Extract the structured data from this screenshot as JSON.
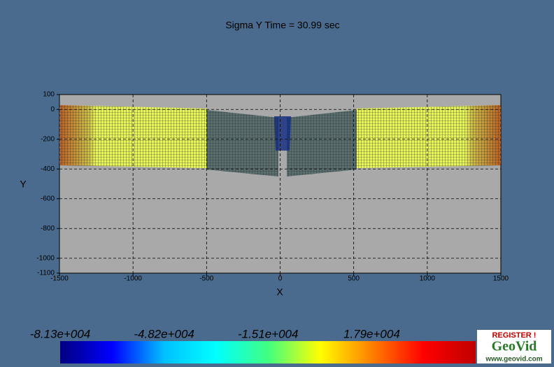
{
  "chart_data": {
    "type": "mesh",
    "title": "Sigma Y    Time =    30.99 sec",
    "xlabel": "X",
    "ylabel": "Y",
    "xlim": [
      -1500,
      1500
    ],
    "xticks": [
      -1500,
      -1000,
      -500,
      0,
      500,
      1000,
      1500
    ],
    "ylim": [
      -1100,
      100
    ],
    "yticks": [
      100,
      0,
      -200,
      -400,
      -600,
      -800,
      -1000,
      -1100
    ],
    "grid": true,
    "colorbar": {
      "clim": [
        -81300,
        51000
      ],
      "colors": [
        "#000080",
        "#0000ff",
        "#00c0ff",
        "#00ffff",
        "#40ff80",
        "#ffff00",
        "#ff8000",
        "#ff0000",
        "#c00000"
      ],
      "ticks": [
        {
          "value": -81300,
          "label": "-8.13e+004"
        },
        {
          "value": -48200,
          "label": "-4.82e+004"
        },
        {
          "value": -15100,
          "label": "-1.51e+004"
        },
        {
          "value": 17900,
          "label": "1.79e+004"
        }
      ]
    },
    "watermark": {
      "banner": "REGISTER !",
      "brand": "GeoVid",
      "url": "www.geovid.com"
    }
  }
}
